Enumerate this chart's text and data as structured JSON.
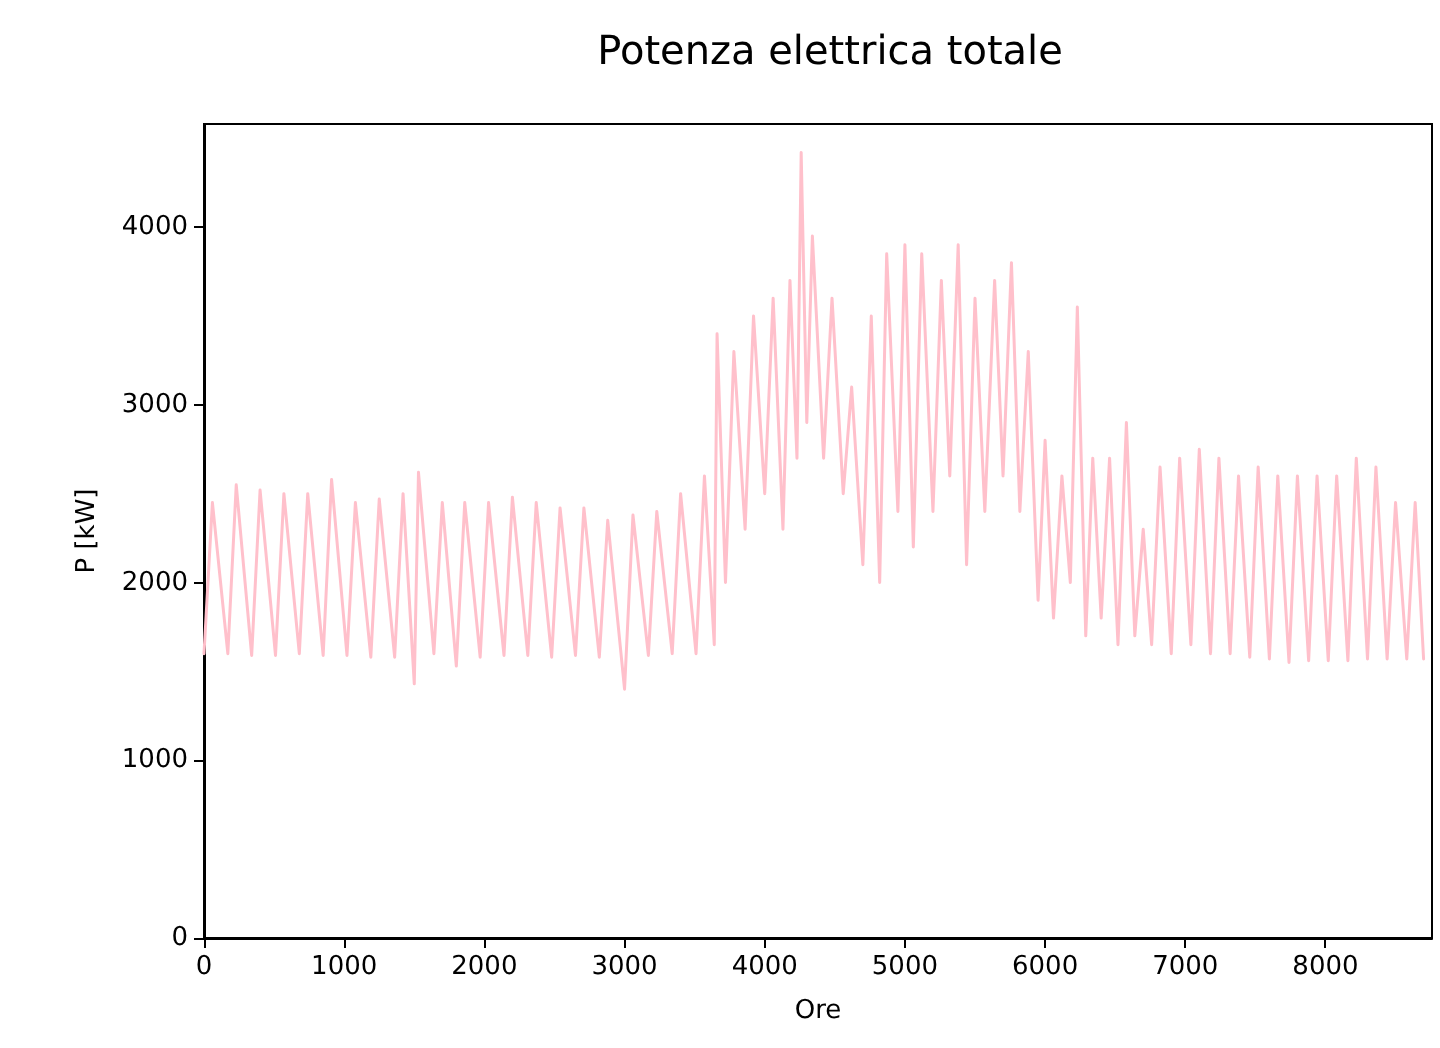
{
  "chart_data": {
    "type": "line",
    "title": "Potenza elettrica totale",
    "xlabel": "Ore",
    "ylabel": "P [kW]",
    "xlim": [
      0,
      8760
    ],
    "xticks": [
      0,
      1000,
      2000,
      3000,
      4000,
      5000,
      6000,
      7000,
      8000
    ],
    "ylim": [
      0,
      4580
    ],
    "yticks": [
      0,
      1000,
      2000,
      3000,
      4000
    ],
    "grid": false,
    "marker": "none",
    "line_style": "solid",
    "series": [
      {
        "color": "#ffc0cb",
        "x": [
          0,
          60,
          170,
          230,
          340,
          400,
          510,
          570,
          680,
          740,
          850,
          910,
          1020,
          1080,
          1190,
          1250,
          1360,
          1420,
          1500,
          1530,
          1640,
          1700,
          1800,
          1860,
          1970,
          2030,
          2140,
          2200,
          2310,
          2370,
          2480,
          2540,
          2650,
          2710,
          2820,
          2880,
          3000,
          3060,
          3170,
          3230,
          3340,
          3400,
          3510,
          3570,
          3640,
          3660,
          3720,
          3780,
          3860,
          3920,
          4000,
          4060,
          4130,
          4180,
          4230,
          4260,
          4300,
          4340,
          4420,
          4480,
          4560,
          4620,
          4700,
          4760,
          4820,
          4870,
          4950,
          5000,
          5060,
          5120,
          5200,
          5260,
          5320,
          5380,
          5440,
          5500,
          5570,
          5640,
          5700,
          5760,
          5820,
          5880,
          5950,
          6000,
          6060,
          6120,
          6180,
          6230,
          6290,
          6340,
          6400,
          6460,
          6520,
          6580,
          6640,
          6700,
          6760,
          6820,
          6900,
          6960,
          7040,
          7100,
          7180,
          7240,
          7320,
          7380,
          7460,
          7520,
          7600,
          7660,
          7740,
          7800,
          7880,
          7940,
          8020,
          8080,
          8160,
          8220,
          8300,
          8360,
          8440,
          8500,
          8580,
          8640,
          8700
        ],
        "values": [
          1600,
          2450,
          1600,
          2550,
          1590,
          2520,
          1590,
          2500,
          1600,
          2500,
          1590,
          2580,
          1590,
          2450,
          1580,
          2470,
          1580,
          2500,
          1430,
          2620,
          1600,
          2450,
          1530,
          2450,
          1580,
          2450,
          1590,
          2480,
          1590,
          2450,
          1580,
          2420,
          1590,
          2420,
          1580,
          2350,
          1400,
          2380,
          1590,
          2400,
          1600,
          2500,
          1600,
          2600,
          1650,
          3400,
          2000,
          3300,
          2300,
          3500,
          2500,
          3600,
          2300,
          3700,
          2700,
          4420,
          2900,
          3950,
          2700,
          3600,
          2500,
          3100,
          2100,
          3500,
          2000,
          3850,
          2400,
          3900,
          2200,
          3850,
          2400,
          3700,
          2600,
          3900,
          2100,
          3600,
          2400,
          3700,
          2600,
          3800,
          2400,
          3300,
          1900,
          2800,
          1800,
          2600,
          2000,
          3550,
          1700,
          2700,
          1800,
          2700,
          1650,
          2900,
          1700,
          2300,
          1650,
          2650,
          1600,
          2700,
          1650,
          2750,
          1600,
          2700,
          1600,
          2600,
          1580,
          2650,
          1570,
          2600,
          1550,
          2600,
          1560,
          2600,
          1560,
          2600,
          1560,
          2700,
          1570,
          2650,
          1570,
          2450,
          1570,
          2450,
          1570
        ]
      }
    ]
  }
}
